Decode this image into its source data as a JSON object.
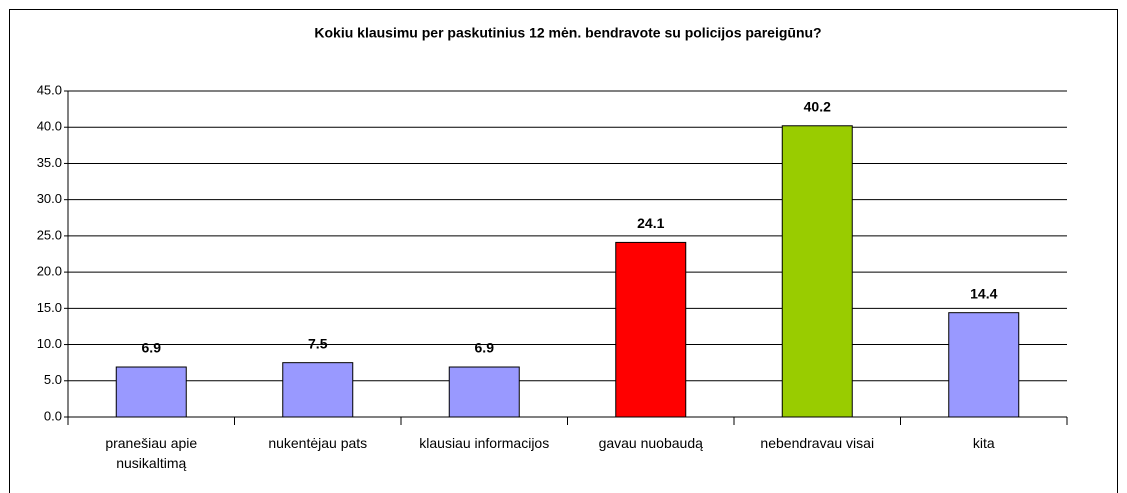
{
  "chart_data": {
    "type": "bar",
    "title": "Kokiu klausimu per paskutinius 12 mėn. bendravote su policijos pareigūnu?",
    "categories": [
      "pranešiau apie nusikaltimą",
      "nukentėjau pats",
      "klausiau informacijos",
      "gavau nuobaudą",
      "nebendravau visai",
      "kita"
    ],
    "values": [
      6.9,
      7.5,
      6.9,
      24.1,
      40.2,
      14.4
    ],
    "colors": [
      "#9999ff",
      "#9999ff",
      "#9999ff",
      "#ff0000",
      "#99cc00",
      "#9999ff"
    ],
    "ylim": [
      0,
      45
    ],
    "yticks": [
      {
        "value": 0,
        "label": "0.0"
      },
      {
        "value": 5,
        "label": "5.0"
      },
      {
        "value": 10,
        "label": "10.0"
      },
      {
        "value": 15,
        "label": "15.0"
      },
      {
        "value": 20,
        "label": "20.0"
      },
      {
        "value": 25,
        "label": "25.0"
      },
      {
        "value": 30,
        "label": "30.0"
      },
      {
        "value": 35,
        "label": "35.0"
      },
      {
        "value": 40,
        "label": "40.0"
      },
      {
        "value": 45,
        "label": "45.0"
      }
    ],
    "grid": true
  }
}
